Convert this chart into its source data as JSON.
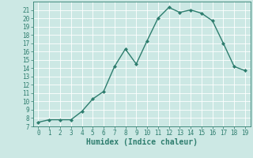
{
  "x": [
    0,
    1,
    2,
    3,
    4,
    5,
    6,
    7,
    8,
    9,
    10,
    11,
    12,
    13,
    14,
    15,
    16,
    17,
    18,
    19
  ],
  "y": [
    7.5,
    7.8,
    7.8,
    7.8,
    8.8,
    10.3,
    11.2,
    14.2,
    16.3,
    14.5,
    17.3,
    20.0,
    21.3,
    20.7,
    21.0,
    20.6,
    19.7,
    17.0,
    14.2,
    13.7
  ],
  "line_color": "#2e7d6e",
  "marker": "D",
  "marker_size": 2.0,
  "bg_color": "#cce8e4",
  "grid_color": "#ffffff",
  "xlabel": "Humidex (Indice chaleur)",
  "xlim": [
    -0.5,
    19.5
  ],
  "ylim": [
    7,
    22
  ],
  "yticks": [
    7,
    8,
    9,
    10,
    11,
    12,
    13,
    14,
    15,
    16,
    17,
    18,
    19,
    20,
    21
  ],
  "xticks": [
    0,
    1,
    2,
    3,
    4,
    5,
    6,
    7,
    8,
    9,
    10,
    11,
    12,
    13,
    14,
    15,
    16,
    17,
    18,
    19
  ],
  "tick_fontsize": 5.5,
  "xlabel_fontsize": 7.0,
  "line_width": 1.0,
  "tick_color": "#2e7d6e",
  "spine_color": "#2e7d6e"
}
